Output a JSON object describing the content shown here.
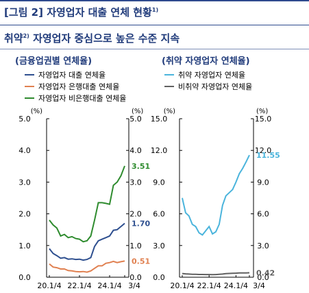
{
  "header": {
    "title_main": "[그림 2] 자영업자 대출 연체 현황",
    "title_sup": "1)",
    "subtitle_main_a": "취약",
    "subtitle_sup": "2)",
    "subtitle_main_b": " 자영업자 중심으로 높은 수준 지속"
  },
  "colors": {
    "title": "#1f3a7a",
    "total": "#2e4f8f",
    "bank": "#e08050",
    "nonbank": "#2e8b2e",
    "vulnerable": "#4ab4dc",
    "nonvulnerable": "#606060"
  },
  "chart_data": [
    {
      "type": "line",
      "title": "(금융업권별 연체율)",
      "ylabel_left": "(%)",
      "ylabel_right": "(%)",
      "ylim": [
        0,
        5.0
      ],
      "yticks": [
        "0.0",
        "1.0",
        "2.0",
        "3.0",
        "4.0",
        "5.0"
      ],
      "xticks": [
        "20.1/4",
        "22.1/4",
        "24.1/4",
        "3/4"
      ],
      "series": [
        {
          "name": "자영업자 대출 연체율",
          "color": "#2e4f8f",
          "values": [
            0.9,
            0.75,
            0.68,
            0.6,
            0.62,
            0.57,
            0.58,
            0.56,
            0.57,
            0.54,
            0.56,
            0.62,
            0.97,
            1.15,
            1.2,
            1.25,
            1.3,
            1.48,
            1.5,
            1.6,
            1.7
          ],
          "end_label": "1.70"
        },
        {
          "name": "자영업자 은행대출 연체율",
          "color": "#e08050",
          "values": [
            0.42,
            0.32,
            0.3,
            0.26,
            0.26,
            0.21,
            0.2,
            0.18,
            0.17,
            0.18,
            0.16,
            0.2,
            0.28,
            0.36,
            0.36,
            0.44,
            0.46,
            0.5,
            0.46,
            0.49,
            0.51
          ],
          "end_label": "0.51"
        },
        {
          "name": "자영업자 비은행대출 연체율",
          "color": "#2e8b2e",
          "values": [
            1.8,
            1.65,
            1.55,
            1.3,
            1.35,
            1.25,
            1.28,
            1.22,
            1.2,
            1.12,
            1.15,
            1.3,
            1.8,
            2.35,
            2.35,
            2.33,
            2.3,
            2.9,
            3.0,
            3.2,
            3.51
          ],
          "end_label": "3.51"
        }
      ]
    },
    {
      "type": "line",
      "title": "(취약 자영업자 연체율)",
      "ylabel_left": "(%)",
      "ylabel_right": "(%)",
      "ylim": [
        0,
        15.0
      ],
      "yticks": [
        "0.0",
        "3.0",
        "6.0",
        "9.0",
        "12.0",
        "15.0"
      ],
      "xticks": [
        "20.1/4",
        "22.1/4",
        "24.1/4",
        "3/4"
      ],
      "series": [
        {
          "name": "취약 자영업자 연체율",
          "color": "#4ab4dc",
          "values": [
            7.5,
            6.1,
            5.8,
            5.0,
            4.8,
            4.2,
            4.0,
            4.4,
            4.8,
            4.1,
            4.3,
            5.0,
            6.8,
            7.7,
            8.0,
            8.3,
            9.0,
            9.8,
            10.3,
            10.9,
            11.55
          ],
          "end_label": "11.55"
        },
        {
          "name": "비취약 자영업자 연체율",
          "color": "#606060",
          "values": [
            0.35,
            0.32,
            0.3,
            0.28,
            0.28,
            0.26,
            0.26,
            0.25,
            0.25,
            0.24,
            0.25,
            0.27,
            0.3,
            0.34,
            0.36,
            0.37,
            0.38,
            0.4,
            0.4,
            0.41,
            0.42
          ],
          "end_label": "0.42"
        }
      ]
    }
  ]
}
